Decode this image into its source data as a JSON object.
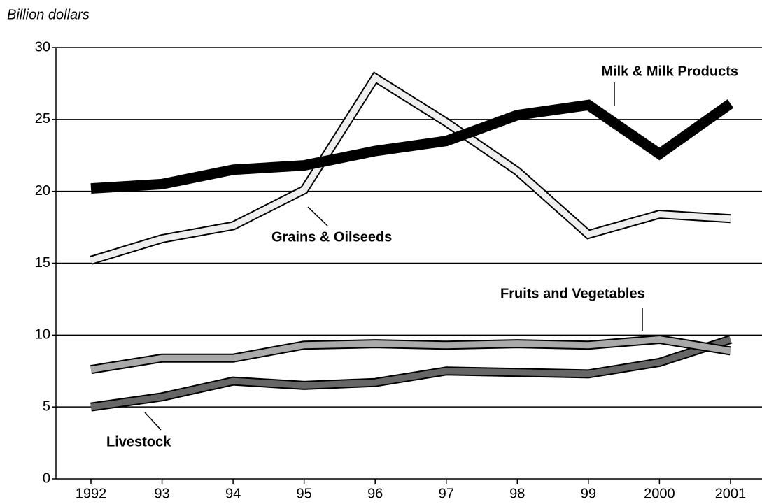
{
  "chart_data": {
    "type": "line",
    "y_label": "Billion dollars",
    "categories": [
      "1992",
      "93",
      "94",
      "95",
      "96",
      "97",
      "98",
      "99",
      "2000",
      "2001"
    ],
    "ylim": [
      0,
      30
    ],
    "yticks": [
      0,
      5,
      10,
      15,
      20,
      25,
      30
    ],
    "grid": true,
    "series": [
      {
        "name": "Milk & Milk Products",
        "color": "#000000",
        "values": [
          20.2,
          20.5,
          21.5,
          21.8,
          22.8,
          23.5,
          25.3,
          26.0,
          22.6,
          26.1
        ]
      },
      {
        "name": "Grains & Oilseeds",
        "color": "#eeeeee",
        "values": [
          15.2,
          16.7,
          17.6,
          20.1,
          27.9,
          24.8,
          21.4,
          17.0,
          18.4,
          18.1
        ]
      },
      {
        "name": "Fruits and Vegetables",
        "color": "#aaaaaa",
        "values": [
          7.6,
          8.4,
          8.4,
          9.3,
          9.4,
          9.3,
          9.4,
          9.3,
          9.7,
          8.9
        ]
      },
      {
        "name": "Livestock",
        "color": "#666666",
        "values": [
          5.0,
          5.7,
          6.8,
          6.5,
          6.7,
          7.5,
          7.4,
          7.3,
          8.1,
          9.7
        ]
      }
    ]
  }
}
